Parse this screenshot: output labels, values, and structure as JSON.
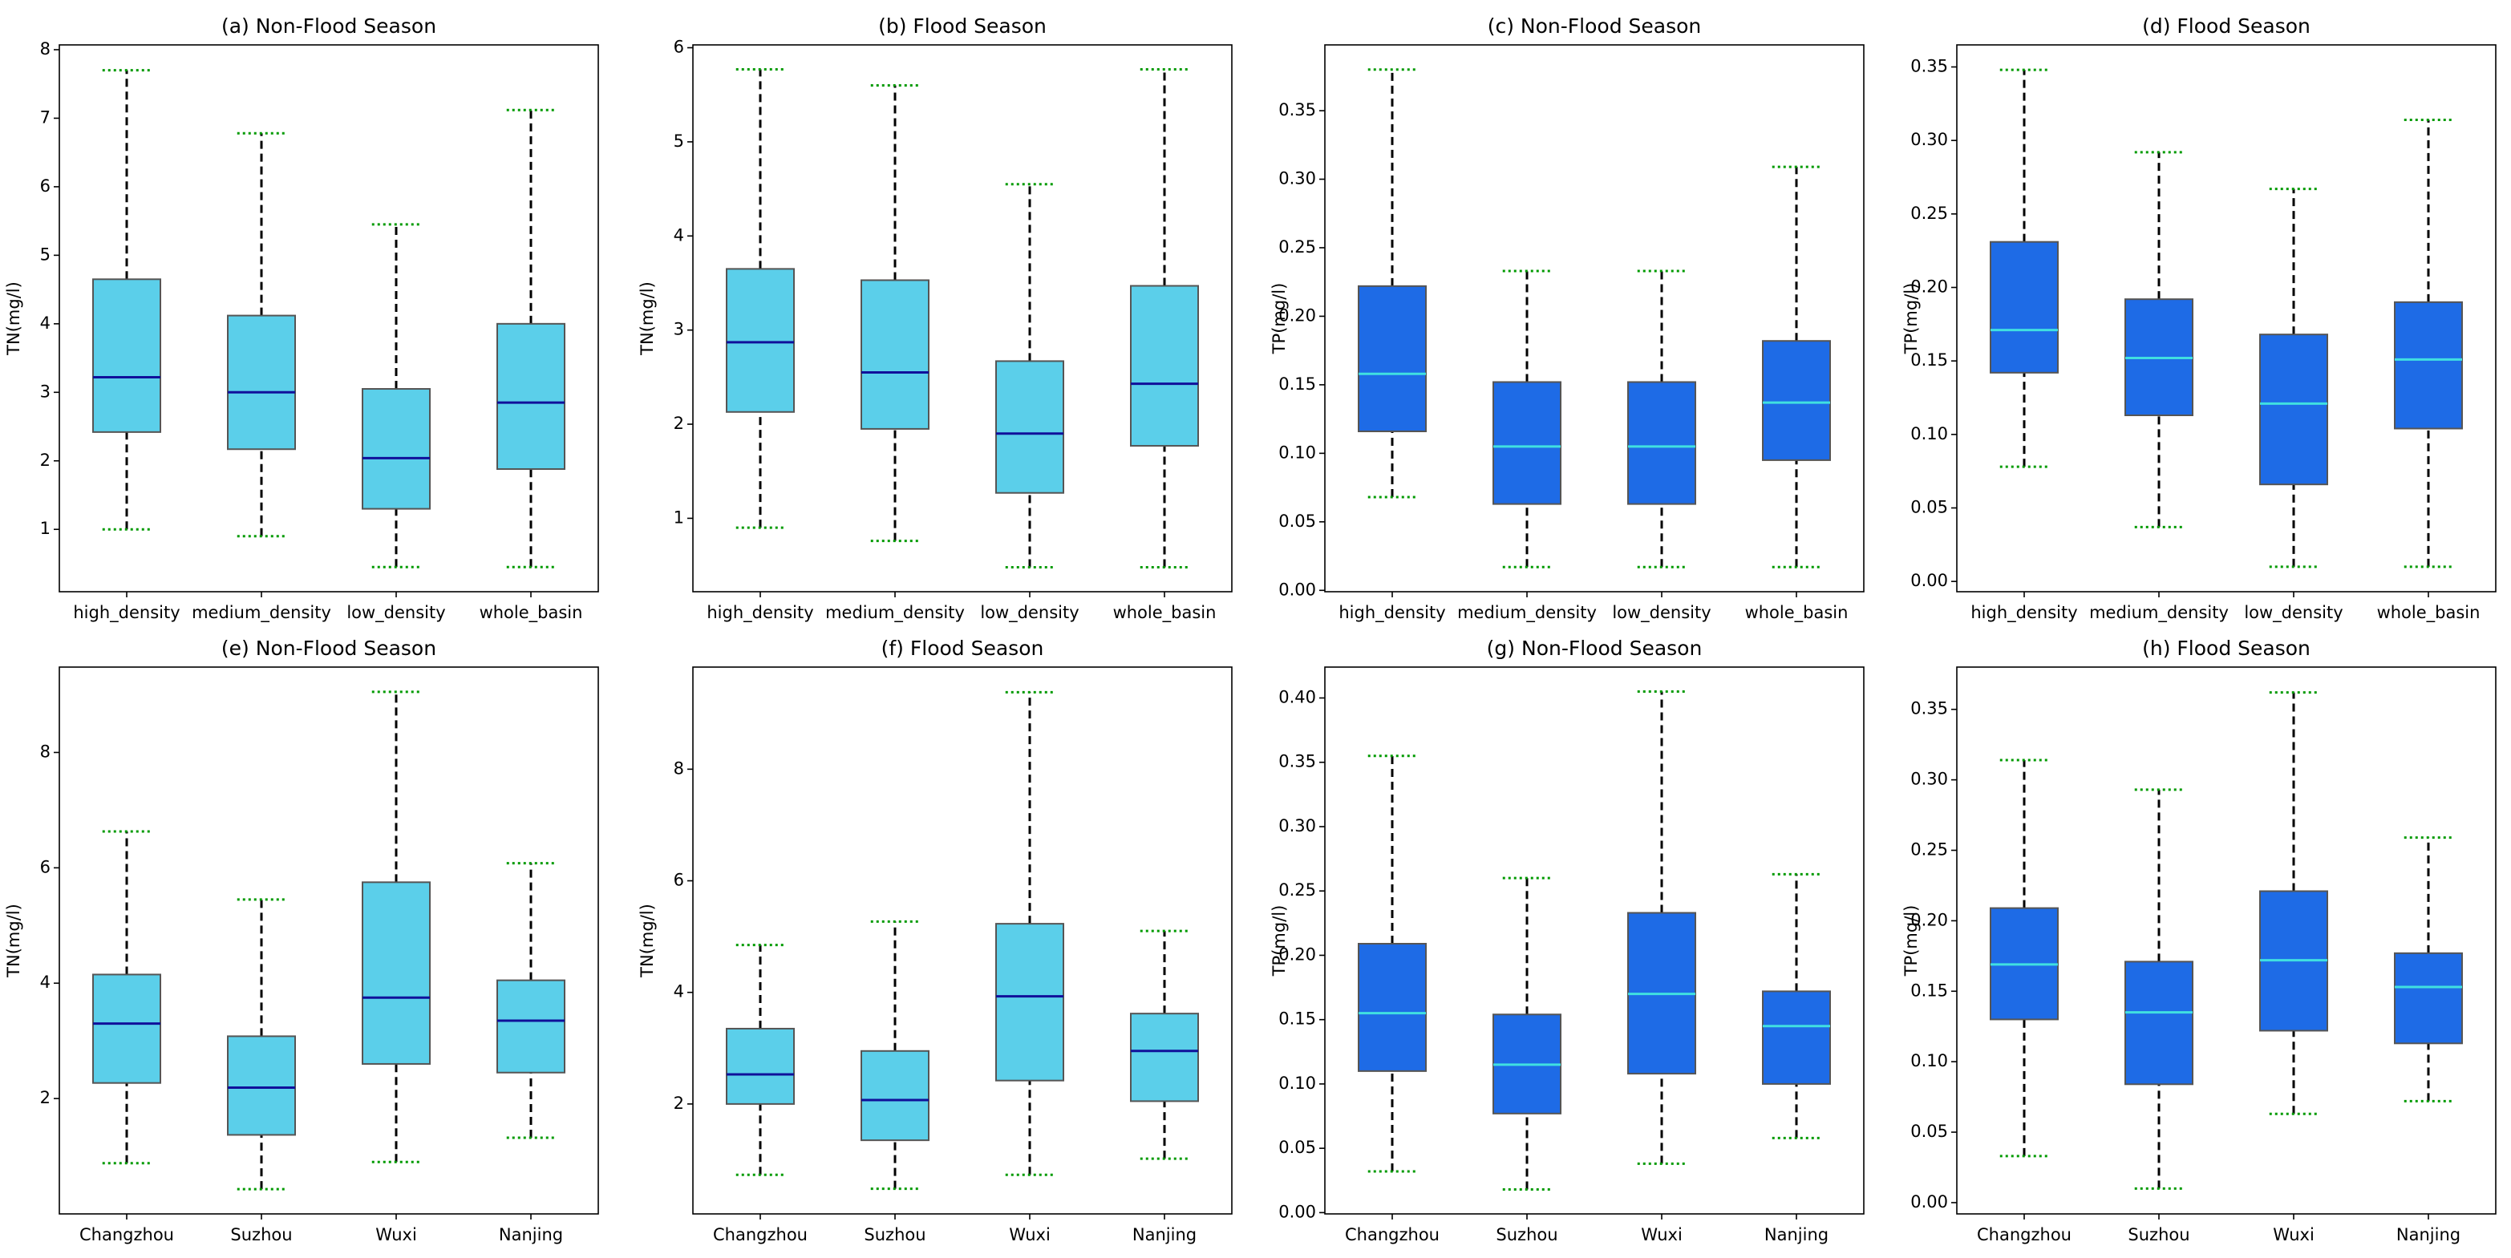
{
  "chart_data": [
    {
      "type": "box",
      "title": "(a) Non-Flood Season",
      "ylabel": "TN(mg/l)",
      "box_color": "#5bcfea",
      "median_color": "#10109a",
      "categories": [
        "high_density",
        "medium_density",
        "low_density",
        "whole_basin"
      ],
      "boxes": [
        {
          "whislo": 1.0,
          "q1": 2.42,
          "med": 3.22,
          "q3": 4.65,
          "whishi": 7.7
        },
        {
          "whislo": 0.9,
          "q1": 2.17,
          "med": 3.0,
          "q3": 4.12,
          "whishi": 6.78
        },
        {
          "whislo": 0.45,
          "q1": 1.3,
          "med": 2.04,
          "q3": 3.05,
          "whishi": 5.45
        },
        {
          "whislo": 0.45,
          "q1": 1.88,
          "med": 2.85,
          "q3": 4.0,
          "whishi": 7.12
        }
      ],
      "ylim": [
        0.09,
        8.07
      ],
      "yticks": [
        1,
        2,
        3,
        4,
        5,
        6,
        7,
        8
      ]
    },
    {
      "type": "box",
      "title": "(b) Flood Season",
      "ylabel": "TN(mg/l)",
      "box_color": "#5bcfea",
      "median_color": "#10109a",
      "categories": [
        "high_density",
        "medium_density",
        "low_density",
        "whole_basin"
      ],
      "boxes": [
        {
          "whislo": 0.9,
          "q1": 2.13,
          "med": 2.87,
          "q3": 3.65,
          "whishi": 5.77
        },
        {
          "whislo": 0.76,
          "q1": 1.95,
          "med": 2.55,
          "q3": 3.53,
          "whishi": 5.6
        },
        {
          "whislo": 0.48,
          "q1": 1.27,
          "med": 1.9,
          "q3": 2.67,
          "whishi": 4.55
        },
        {
          "whislo": 0.48,
          "q1": 1.77,
          "med": 2.43,
          "q3": 3.47,
          "whishi": 5.77
        }
      ],
      "ylim": [
        0.22,
        6.03
      ],
      "yticks": [
        1,
        2,
        3,
        4,
        5,
        6
      ]
    },
    {
      "type": "box",
      "title": "(c) Non-Flood Season",
      "ylabel": "TP(mg/l)",
      "box_color": "#1e6be6",
      "median_color": "#40e0e0",
      "categories": [
        "high_density",
        "medium_density",
        "low_density",
        "whole_basin"
      ],
      "boxes": [
        {
          "whislo": 0.068,
          "q1": 0.116,
          "med": 0.158,
          "q3": 0.222,
          "whishi": 0.38
        },
        {
          "whislo": 0.017,
          "q1": 0.063,
          "med": 0.105,
          "q3": 0.152,
          "whishi": 0.233
        },
        {
          "whislo": 0.017,
          "q1": 0.063,
          "med": 0.105,
          "q3": 0.152,
          "whishi": 0.233
        },
        {
          "whislo": 0.017,
          "q1": 0.095,
          "med": 0.137,
          "q3": 0.182,
          "whishi": 0.309
        }
      ],
      "ylim": [
        -0.001,
        0.398
      ],
      "yticks": [
        {
          "value": 0,
          "label": "0.00"
        },
        0.05,
        {
          "value": 0.1,
          "label": "0.10"
        },
        0.15,
        {
          "value": 0.2,
          "label": "0.20"
        },
        0.25,
        {
          "value": 0.3,
          "label": "0.30"
        },
        0.35
      ]
    },
    {
      "type": "box",
      "title": "(d) Flood Season",
      "ylabel": "TP(mg/l)",
      "box_color": "#1e6be6",
      "median_color": "#40e0e0",
      "categories": [
        "high_density",
        "medium_density",
        "low_density",
        "whole_basin"
      ],
      "boxes": [
        {
          "whislo": 0.078,
          "q1": 0.142,
          "med": 0.171,
          "q3": 0.231,
          "whishi": 0.348
        },
        {
          "whislo": 0.037,
          "q1": 0.113,
          "med": 0.152,
          "q3": 0.192,
          "whishi": 0.292
        },
        {
          "whislo": 0.01,
          "q1": 0.066,
          "med": 0.121,
          "q3": 0.168,
          "whishi": 0.267
        },
        {
          "whislo": 0.01,
          "q1": 0.104,
          "med": 0.151,
          "q3": 0.19,
          "whishi": 0.314
        }
      ],
      "ylim": [
        -0.007,
        0.365
      ],
      "yticks": [
        {
          "value": 0,
          "label": "0.00"
        },
        0.05,
        {
          "value": 0.1,
          "label": "0.10"
        },
        0.15,
        {
          "value": 0.2,
          "label": "0.20"
        },
        0.25,
        {
          "value": 0.3,
          "label": "0.30"
        },
        0.35
      ]
    },
    {
      "type": "box",
      "title": "(e) Non-Flood Season",
      "ylabel": "TN(mg/l)",
      "box_color": "#5bcfea",
      "median_color": "#10109a",
      "categories": [
        "Changzhou",
        "Suzhou",
        "Wuxi",
        "Nanjing"
      ],
      "boxes": [
        {
          "whislo": 0.88,
          "q1": 2.27,
          "med": 3.3,
          "q3": 4.15,
          "whishi": 6.63
        },
        {
          "whislo": 0.43,
          "q1": 1.37,
          "med": 2.19,
          "q3": 3.08,
          "whishi": 5.45
        },
        {
          "whislo": 0.9,
          "q1": 2.6,
          "med": 3.75,
          "q3": 5.75,
          "whishi": 9.05
        },
        {
          "whislo": 1.32,
          "q1": 2.45,
          "med": 3.35,
          "q3": 4.05,
          "whishi": 6.08
        }
      ],
      "ylim": [
        0.0,
        9.48
      ],
      "yticks": [
        2,
        4,
        6,
        8
      ]
    },
    {
      "type": "box",
      "title": "(f) Flood Season",
      "ylabel": "TN(mg/l)",
      "box_color": "#5bcfea",
      "median_color": "#10109a",
      "categories": [
        "Changzhou",
        "Suzhou",
        "Wuxi",
        "Nanjing"
      ],
      "boxes": [
        {
          "whislo": 0.73,
          "q1": 2.0,
          "med": 2.53,
          "q3": 3.35,
          "whishi": 4.85
        },
        {
          "whislo": 0.48,
          "q1": 1.35,
          "med": 2.07,
          "q3": 2.95,
          "whishi": 5.27
        },
        {
          "whislo": 0.73,
          "q1": 2.42,
          "med": 3.93,
          "q3": 5.23,
          "whishi": 9.38
        },
        {
          "whislo": 1.02,
          "q1": 2.05,
          "med": 2.95,
          "q3": 3.62,
          "whishi": 5.1
        }
      ],
      "ylim": [
        0.03,
        9.83
      ],
      "yticks": [
        2,
        4,
        6,
        8
      ]
    },
    {
      "type": "box",
      "title": "(g) Non-Flood Season",
      "ylabel": "TP(mg/l)",
      "box_color": "#1e6be6",
      "median_color": "#40e0e0",
      "categories": [
        "Changzhou",
        "Suzhou",
        "Wuxi",
        "Nanjing"
      ],
      "boxes": [
        {
          "whislo": 0.032,
          "q1": 0.11,
          "med": 0.155,
          "q3": 0.209,
          "whishi": 0.355
        },
        {
          "whislo": 0.018,
          "q1": 0.077,
          "med": 0.115,
          "q3": 0.154,
          "whishi": 0.26
        },
        {
          "whislo": 0.038,
          "q1": 0.108,
          "med": 0.17,
          "q3": 0.233,
          "whishi": 0.405
        },
        {
          "whislo": 0.058,
          "q1": 0.1,
          "med": 0.145,
          "q3": 0.172,
          "whishi": 0.263
        }
      ],
      "ylim": [
        -0.001,
        0.424
      ],
      "yticks": [
        {
          "value": 0,
          "label": "0.00"
        },
        0.05,
        {
          "value": 0.1,
          "label": "0.10"
        },
        0.15,
        {
          "value": 0.2,
          "label": "0.20"
        },
        0.25,
        {
          "value": 0.3,
          "label": "0.30"
        },
        0.35,
        {
          "value": 0.4,
          "label": "0.40"
        }
      ]
    },
    {
      "type": "box",
      "title": "(h) Flood Season",
      "ylabel": "TP(mg/l)",
      "box_color": "#1e6be6",
      "median_color": "#40e0e0",
      "categories": [
        "Changzhou",
        "Suzhou",
        "Wuxi",
        "Nanjing"
      ],
      "boxes": [
        {
          "whislo": 0.033,
          "q1": 0.13,
          "med": 0.169,
          "q3": 0.209,
          "whishi": 0.314
        },
        {
          "whislo": 0.01,
          "q1": 0.084,
          "med": 0.135,
          "q3": 0.171,
          "whishi": 0.293
        },
        {
          "whislo": 0.063,
          "q1": 0.122,
          "med": 0.172,
          "q3": 0.221,
          "whishi": 0.362
        },
        {
          "whislo": 0.072,
          "q1": 0.113,
          "med": 0.153,
          "q3": 0.177,
          "whishi": 0.259
        }
      ],
      "ylim": [
        -0.008,
        0.38
      ],
      "yticks": [
        {
          "value": 0,
          "label": "0.00"
        },
        0.05,
        {
          "value": 0.1,
          "label": "0.10"
        },
        0.15,
        {
          "value": 0.2,
          "label": "0.20"
        },
        0.25,
        {
          "value": 0.3,
          "label": "0.30"
        },
        0.35
      ]
    }
  ]
}
